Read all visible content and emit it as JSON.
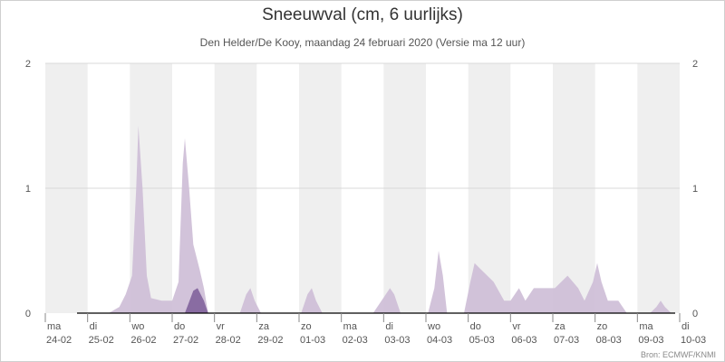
{
  "header": {
    "title": "Sneeuwval (cm, 6 uurlijks)",
    "subtitle": "Den Helder/De Kooy, maandag 24 februari 2020 (Versie ma 12 uur)"
  },
  "footer": {
    "credit": "Bron: ECMWF/KNMI"
  },
  "colors": {
    "background_band": "#efefef",
    "ensemble_fill": "#cdbdd6",
    "main_fill": "#85679f",
    "gridline": "#d8d8d8",
    "axis": "#000000"
  },
  "chart_data": {
    "type": "area",
    "title": "Sneeuwval (cm, 6 uurlijks)",
    "subtitle": "Den Helder/De Kooy, maandag 24 februari 2020 (Versie ma 12 uur)",
    "ylim": [
      0,
      2
    ],
    "y_ticks": [
      "0",
      "1",
      "2"
    ],
    "y_ticks_right": [
      "0",
      "1",
      "2"
    ],
    "grid": true,
    "x_days": [
      {
        "day": "ma",
        "date": "24-02"
      },
      {
        "day": "di",
        "date": "25-02"
      },
      {
        "day": "wo",
        "date": "26-02"
      },
      {
        "day": "do",
        "date": "27-02"
      },
      {
        "day": "vr",
        "date": "28-02"
      },
      {
        "day": "za",
        "date": "29-02"
      },
      {
        "day": "zo",
        "date": "01-03"
      },
      {
        "day": "ma",
        "date": "02-03"
      },
      {
        "day": "di",
        "date": "03-03"
      },
      {
        "day": "wo",
        "date": "04-03"
      },
      {
        "day": "do",
        "date": "05-03"
      },
      {
        "day": "vr",
        "date": "06-03"
      },
      {
        "day": "za",
        "date": "07-03"
      },
      {
        "day": "zo",
        "date": "08-03"
      },
      {
        "day": "ma",
        "date": "09-03"
      },
      {
        "day": "di",
        "date": "10-03"
      }
    ],
    "series": [
      {
        "kind": "ensemble-max",
        "points": [
          [
            0.0,
            0
          ],
          [
            0.75,
            0
          ],
          [
            1.5,
            0
          ],
          [
            1.75,
            0.05
          ],
          [
            1.9,
            0.15
          ],
          [
            2.05,
            0.3
          ],
          [
            2.15,
            1.0
          ],
          [
            2.2,
            1.5
          ],
          [
            2.3,
            1.0
          ],
          [
            2.4,
            0.3
          ],
          [
            2.5,
            0.12
          ],
          [
            2.75,
            0.1
          ],
          [
            3.0,
            0.1
          ],
          [
            3.15,
            0.25
          ],
          [
            3.25,
            1.2
          ],
          [
            3.3,
            1.4
          ],
          [
            3.4,
            1.0
          ],
          [
            3.5,
            0.55
          ],
          [
            3.65,
            0.35
          ],
          [
            3.75,
            0.2
          ],
          [
            3.85,
            0
          ],
          [
            4.6,
            0
          ],
          [
            4.75,
            0.15
          ],
          [
            4.85,
            0.2
          ],
          [
            4.95,
            0.1
          ],
          [
            5.1,
            0
          ],
          [
            6.05,
            0
          ],
          [
            6.2,
            0.15
          ],
          [
            6.3,
            0.2
          ],
          [
            6.4,
            0.1
          ],
          [
            6.55,
            0
          ],
          [
            7.75,
            0
          ],
          [
            7.95,
            0.1
          ],
          [
            8.15,
            0.2
          ],
          [
            8.25,
            0.15
          ],
          [
            8.4,
            0
          ],
          [
            9.05,
            0
          ],
          [
            9.2,
            0.2
          ],
          [
            9.3,
            0.5
          ],
          [
            9.4,
            0.3
          ],
          [
            9.5,
            0
          ],
          [
            9.9,
            0
          ],
          [
            10.05,
            0.25
          ],
          [
            10.15,
            0.4
          ],
          [
            10.3,
            0.35
          ],
          [
            10.6,
            0.25
          ],
          [
            10.85,
            0.1
          ],
          [
            11.0,
            0.1
          ],
          [
            11.2,
            0.2
          ],
          [
            11.35,
            0.1
          ],
          [
            11.55,
            0.2
          ],
          [
            11.8,
            0.2
          ],
          [
            12.05,
            0.2
          ],
          [
            12.35,
            0.3
          ],
          [
            12.6,
            0.2
          ],
          [
            12.75,
            0.1
          ],
          [
            12.95,
            0.25
          ],
          [
            13.05,
            0.4
          ],
          [
            13.15,
            0.25
          ],
          [
            13.3,
            0.1
          ],
          [
            13.55,
            0.1
          ],
          [
            13.75,
            0
          ],
          [
            14.3,
            0
          ],
          [
            14.45,
            0.05
          ],
          [
            14.55,
            0.1
          ],
          [
            14.65,
            0.05
          ],
          [
            14.8,
            0
          ],
          [
            16.0,
            0
          ]
        ]
      },
      {
        "kind": "main",
        "points": [
          [
            0.0,
            0
          ],
          [
            3.3,
            0
          ],
          [
            3.5,
            0.18
          ],
          [
            3.6,
            0.2
          ],
          [
            3.75,
            0.1
          ],
          [
            3.85,
            0
          ],
          [
            16.0,
            0
          ]
        ]
      }
    ]
  }
}
